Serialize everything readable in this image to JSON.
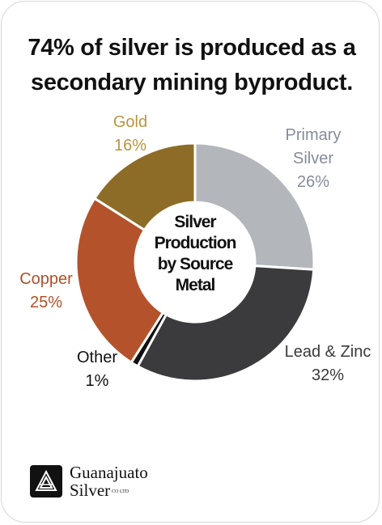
{
  "chart_data": {
    "type": "donut",
    "title": "74% of silver is produced as a secondary mining byproduct.",
    "center_label": "Silver Production by Source Metal",
    "categories": [
      "Primary Silver",
      "Lead & Zinc",
      "Other",
      "Copper",
      "Gold"
    ],
    "values": [
      26,
      32,
      1,
      25,
      16
    ],
    "value_labels": [
      "26%",
      "32%",
      "1%",
      "25%",
      "16%"
    ],
    "colors": [
      "#b3b6ba",
      "#3b3b3d",
      "#111111",
      "#b4532b",
      "#8c6c26"
    ],
    "label_colors": [
      "#858b9c",
      "#3a3a3a",
      "#111111",
      "#b0502a",
      "#b8963e"
    ]
  },
  "brand": {
    "name_lines": [
      "Guanajuato",
      "Silver"
    ],
    "suffix": "CO LTD"
  }
}
